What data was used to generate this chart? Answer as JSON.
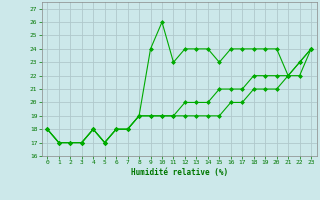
{
  "xlabel": "Humidité relative (%)",
  "background_color": "#cce8ea",
  "grid_color": "#b0c8cc",
  "line_color": "#00aa00",
  "xlim": [
    -0.5,
    23.5
  ],
  "ylim": [
    16,
    27.5
  ],
  "xticks": [
    0,
    1,
    2,
    3,
    4,
    5,
    6,
    7,
    8,
    9,
    10,
    11,
    12,
    13,
    14,
    15,
    16,
    17,
    18,
    19,
    20,
    21,
    22,
    23
  ],
  "yticks": [
    16,
    17,
    18,
    19,
    20,
    21,
    22,
    23,
    24,
    25,
    26,
    27
  ],
  "series": [
    {
      "x": [
        0,
        1,
        2,
        3,
        4,
        5,
        6,
        7,
        8,
        9,
        10,
        11,
        12,
        13,
        14,
        15,
        16,
        17,
        18,
        19,
        20,
        21,
        22,
        23
      ],
      "y": [
        18,
        17,
        17,
        17,
        18,
        17,
        18,
        18,
        19,
        24,
        26,
        23,
        24,
        24,
        24,
        23,
        24,
        24,
        24,
        24,
        24,
        22,
        23,
        24
      ]
    },
    {
      "x": [
        0,
        1,
        2,
        3,
        4,
        5,
        6,
        7,
        8,
        9,
        10,
        11,
        12,
        13,
        14,
        15,
        16,
        17,
        18,
        19,
        20,
        21,
        22,
        23
      ],
      "y": [
        18,
        17,
        17,
        17,
        18,
        17,
        18,
        18,
        19,
        19,
        19,
        19,
        19,
        19,
        19,
        19,
        20,
        20,
        21,
        21,
        21,
        22,
        22,
        24
      ]
    },
    {
      "x": [
        0,
        1,
        2,
        3,
        4,
        5,
        6,
        7,
        8,
        9,
        10,
        11,
        12,
        13,
        14,
        15,
        16,
        17,
        18,
        19,
        20,
        21,
        22,
        23
      ],
      "y": [
        18,
        17,
        17,
        17,
        18,
        17,
        18,
        18,
        19,
        19,
        19,
        19,
        20,
        20,
        20,
        21,
        21,
        21,
        22,
        22,
        22,
        22,
        23,
        24
      ]
    }
  ]
}
